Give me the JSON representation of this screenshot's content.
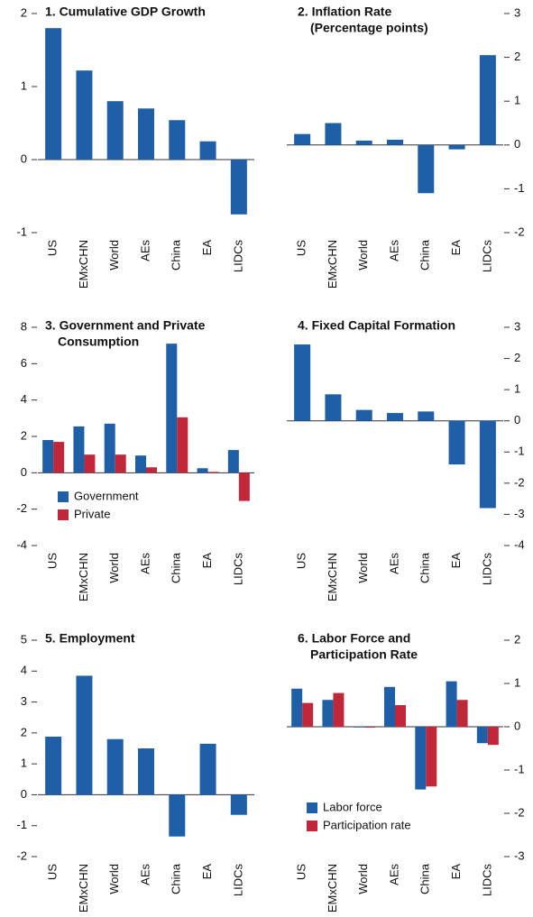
{
  "chart_data": [
    {
      "type": "bar",
      "title": [
        "1. Cumulative GDP Growth"
      ],
      "categories": [
        "US",
        "EMxCHN",
        "World",
        "AEs",
        "China",
        "EA",
        "LIDCs"
      ],
      "values": [
        1.8,
        1.22,
        0.8,
        0.7,
        0.54,
        0.25,
        -0.75
      ],
      "color": "#1f5fa8",
      "ylim": [
        -1,
        2
      ],
      "yticks": [
        -1,
        0,
        1,
        2
      ],
      "yaxis_position": "left"
    },
    {
      "type": "bar",
      "title": [
        "2. Inflation Rate",
        "(Percentage points)"
      ],
      "categories": [
        "US",
        "EMxCHN",
        "World",
        "AEs",
        "China",
        "EA",
        "LIDCs"
      ],
      "values": [
        0.25,
        0.5,
        0.1,
        0.12,
        -1.1,
        -0.1,
        2.05
      ],
      "color": "#1f5fa8",
      "ylim": [
        -2,
        3
      ],
      "yticks": [
        -2,
        -1,
        0,
        1,
        2,
        3
      ],
      "yaxis_position": "right"
    },
    {
      "type": "grouped_bar",
      "title": [
        "3. Government and Private",
        "Consumption"
      ],
      "categories": [
        "US",
        "EMxCHN",
        "World",
        "AEs",
        "China",
        "EA",
        "LIDCs"
      ],
      "series": [
        {
          "name": "Government",
          "color": "#1f5fa8",
          "values": [
            1.8,
            2.55,
            2.7,
            0.95,
            7.1,
            0.25,
            1.25
          ]
        },
        {
          "name": "Private",
          "color": "#c0283a",
          "values": [
            1.7,
            1.0,
            1.0,
            0.3,
            3.05,
            0.05,
            -1.55
          ]
        }
      ],
      "ylim": [
        -4,
        8
      ],
      "yticks": [
        -4,
        -2,
        0,
        2,
        4,
        6,
        8
      ],
      "yaxis_position": "left",
      "legend": "lower left"
    },
    {
      "type": "bar",
      "title": [
        "4. Fixed Capital Formation"
      ],
      "categories": [
        "US",
        "EMxCHN",
        "World",
        "AEs",
        "China",
        "EA",
        "LIDCs"
      ],
      "values": [
        2.45,
        0.85,
        0.35,
        0.25,
        0.3,
        -1.4,
        -2.8
      ],
      "color": "#1f5fa8",
      "ylim": [
        -4,
        3
      ],
      "yticks": [
        -4,
        -3,
        -2,
        -1,
        0,
        1,
        2,
        3
      ],
      "yaxis_position": "right"
    },
    {
      "type": "bar",
      "title": [
        "5. Employment"
      ],
      "categories": [
        "US",
        "EMxCHN",
        "World",
        "AEs",
        "China",
        "EA",
        "LIDCs"
      ],
      "values": [
        1.88,
        3.85,
        1.8,
        1.5,
        -1.35,
        1.65,
        -0.65
      ],
      "color": "#1f5fa8",
      "ylim": [
        -2,
        5
      ],
      "yticks": [
        -2,
        -1,
        0,
        1,
        2,
        3,
        4,
        5
      ],
      "yaxis_position": "left"
    },
    {
      "type": "grouped_bar",
      "title": [
        "6. Labor Force and",
        "Participation Rate"
      ],
      "categories": [
        "US",
        "EMxCHN",
        "World",
        "AEs",
        "China",
        "EA",
        "LIDCs"
      ],
      "series": [
        {
          "name": "Labor force",
          "color": "#1f5fa8",
          "values": [
            0.88,
            0.62,
            0,
            0.92,
            -1.45,
            1.05,
            -0.38
          ]
        },
        {
          "name": "Participation rate",
          "color": "#c0283a",
          "values": [
            0.55,
            0.78,
            -0.02,
            0.5,
            -1.38,
            0.62,
            -0.42
          ]
        }
      ],
      "ylim": [
        -3,
        2
      ],
      "yticks": [
        -3,
        -2,
        -1,
        0,
        1,
        2
      ],
      "yaxis_position": "right",
      "legend": "lower left"
    }
  ]
}
